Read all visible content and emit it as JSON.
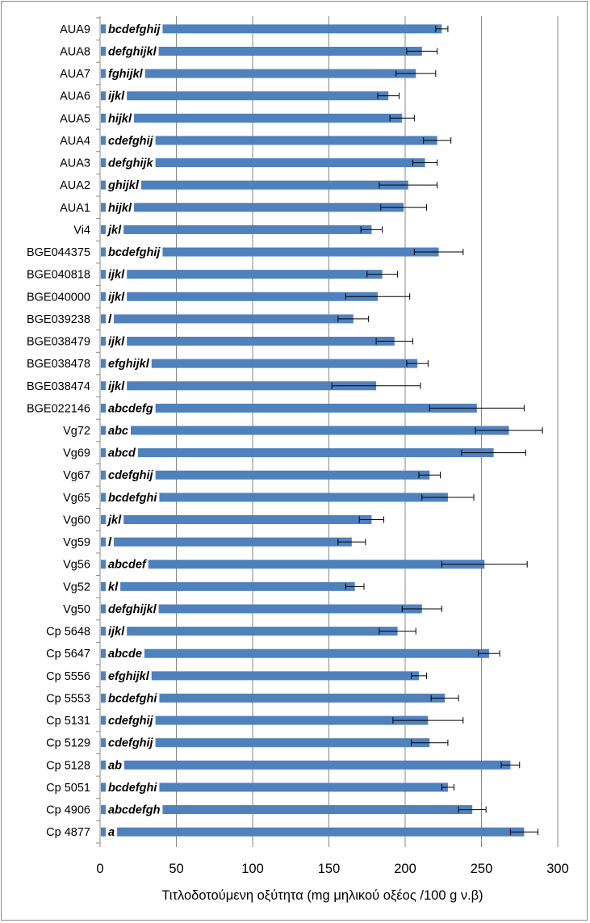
{
  "chart_data": {
    "type": "bar",
    "orientation": "horizontal",
    "xlabel": "Τιτλοδοτούμενη οξύτητα (mg μηλικού οξέος /100 g ν.β)",
    "ylabel": "",
    "xlim": [
      0,
      300
    ],
    "x_ticks": [
      0,
      50,
      100,
      150,
      200,
      250,
      300
    ],
    "grid": "vertical major gridlines",
    "bar_color": "#4f81bd",
    "categories": [
      "AUA9",
      "AUA8",
      "AUA7",
      "AUA6",
      "AUA5",
      "AUA4",
      "AUA3",
      "AUA2",
      "AUA1",
      "Vi4",
      "BGE044375",
      "BGE040818",
      "BGE040000",
      "BGE039238",
      "BGE038479",
      "BGE038478",
      "BGE038474",
      "BGE022146",
      "Vg72",
      "Vg69",
      "Vg67",
      "Vg65",
      "Vg60",
      "Vg59",
      "Vg56",
      "Vg52",
      "Vg50",
      "Cp 5648",
      "Cp 5647",
      "Cp 5556",
      "Cp 5553",
      "Cp 5131",
      "Cp 5129",
      "Cp 5128",
      "Cp 5051",
      "Cp 4906",
      "Cp 4877"
    ],
    "values": [
      224,
      211,
      207,
      189,
      198,
      221,
      213,
      202,
      199,
      178,
      222,
      185,
      182,
      166,
      193,
      208,
      181,
      247,
      268,
      258,
      216,
      228,
      178,
      165,
      252,
      167,
      211,
      195,
      255,
      209,
      226,
      215,
      216,
      269,
      228,
      244,
      278
    ],
    "error": [
      4,
      10,
      13,
      7,
      8,
      9,
      8,
      19,
      15,
      7,
      16,
      10,
      21,
      10,
      12,
      7,
      29,
      31,
      22,
      21,
      7,
      17,
      8,
      9,
      28,
      6,
      13,
      12,
      7,
      5,
      9,
      23,
      12,
      6,
      4,
      9,
      9
    ],
    "significance_letters": [
      "bcdefghij",
      "defghijkl",
      "fghijkl",
      "ijkl",
      "hijkl",
      "cdefghij",
      "defghijk",
      "ghijkl",
      "hijkl",
      "jkl",
      "bcdefghij",
      "ijkl",
      "ijkl",
      "l",
      "ijkl",
      "efghijkl",
      "ijkl",
      "abcdefg",
      "abc",
      "abcd",
      "cdefghij",
      "bcdefghi",
      "jkl",
      "l",
      "abcdef",
      "kl",
      "defghijkl",
      "ijkl",
      "abcde",
      "efghijkl",
      "bcdefghi",
      "cdefghij",
      "cdefghij",
      "ab",
      "bcdefghi",
      "abcdefgh",
      "a"
    ]
  }
}
